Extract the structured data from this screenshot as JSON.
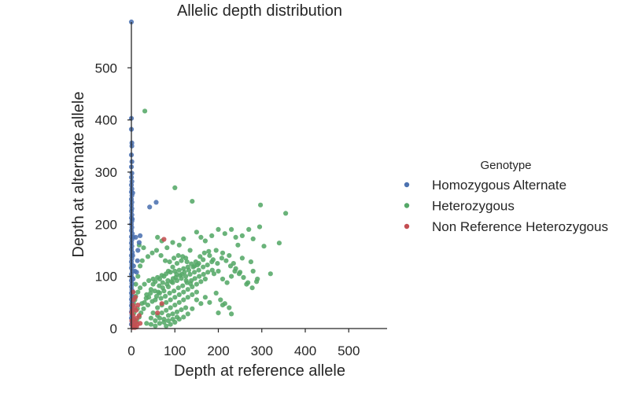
{
  "chart_data": {
    "type": "scatter",
    "title": "Allelic depth distribution",
    "xlabel": "Depth at reference allele",
    "ylabel": "Depth at alternate allele",
    "xlim": [
      0,
      590
    ],
    "ylim": [
      0,
      590
    ],
    "xticks": [
      0,
      100,
      200,
      300,
      400,
      500
    ],
    "yticks": [
      0,
      100,
      200,
      300,
      400,
      500
    ],
    "grid": false,
    "legend": {
      "title": "Genotype",
      "placement": "right"
    },
    "series": [
      {
        "name": "Homozygous Alternate",
        "color": "#4c72b0",
        "points": [
          [
            0,
            588
          ],
          [
            0,
            403
          ],
          [
            0,
            382
          ],
          [
            1,
            356
          ],
          [
            1,
            350
          ],
          [
            0,
            333
          ],
          [
            1,
            320
          ],
          [
            0,
            310
          ],
          [
            1,
            298
          ],
          [
            0,
            290
          ],
          [
            1,
            282
          ],
          [
            0,
            275
          ],
          [
            1,
            268
          ],
          [
            0,
            262
          ],
          [
            1,
            255
          ],
          [
            0,
            248
          ],
          [
            1,
            242
          ],
          [
            0,
            236
          ],
          [
            1,
            230
          ],
          [
            0,
            225
          ],
          [
            1,
            218
          ],
          [
            0,
            212
          ],
          [
            1,
            206
          ],
          [
            0,
            200
          ],
          [
            1,
            194
          ],
          [
            0,
            188
          ],
          [
            2,
            182
          ],
          [
            0,
            176
          ],
          [
            1,
            170
          ],
          [
            0,
            164
          ],
          [
            1,
            158
          ],
          [
            0,
            152
          ],
          [
            2,
            146
          ],
          [
            0,
            140
          ],
          [
            1,
            134
          ],
          [
            0,
            128
          ],
          [
            1,
            122
          ],
          [
            0,
            116
          ],
          [
            2,
            110
          ],
          [
            0,
            104
          ],
          [
            1,
            98
          ],
          [
            0,
            92
          ],
          [
            1,
            86
          ],
          [
            0,
            80
          ],
          [
            1,
            74
          ],
          [
            0,
            68
          ],
          [
            1,
            62
          ],
          [
            0,
            56
          ],
          [
            1,
            50
          ],
          [
            0,
            44
          ],
          [
            1,
            38
          ],
          [
            0,
            32
          ],
          [
            1,
            26
          ],
          [
            0,
            20
          ],
          [
            1,
            14
          ],
          [
            0,
            8
          ],
          [
            3,
            260
          ],
          [
            2,
            210
          ],
          [
            4,
            175
          ],
          [
            3,
            140
          ],
          [
            5,
            120
          ],
          [
            4,
            95
          ],
          [
            3,
            70
          ],
          [
            2,
            45
          ],
          [
            10,
            175
          ],
          [
            8,
            110
          ],
          [
            12,
            108
          ],
          [
            20,
            178
          ],
          [
            18,
            165
          ],
          [
            15,
            150
          ],
          [
            14,
            130
          ],
          [
            42,
            233
          ],
          [
            57,
            242
          ]
        ]
      },
      {
        "name": "Heterozygous",
        "color": "#55a868",
        "points": [
          [
            31,
            417
          ],
          [
            100,
            270
          ],
          [
            140,
            244
          ],
          [
            297,
            237
          ],
          [
            355,
            221
          ],
          [
            60,
            175
          ],
          [
            70,
            168
          ],
          [
            82,
            155
          ],
          [
            95,
            165
          ],
          [
            110,
            160
          ],
          [
            120,
            172
          ],
          [
            135,
            150
          ],
          [
            150,
            185
          ],
          [
            160,
            175
          ],
          [
            170,
            168
          ],
          [
            185,
            178
          ],
          [
            200,
            190
          ],
          [
            215,
            182
          ],
          [
            230,
            190
          ],
          [
            240,
            175
          ],
          [
            255,
            178
          ],
          [
            270,
            190
          ],
          [
            280,
            172
          ],
          [
            295,
            195
          ],
          [
            305,
            158
          ],
          [
            340,
            164
          ],
          [
            245,
            160
          ],
          [
            225,
            140
          ],
          [
            210,
            145
          ],
          [
            195,
            150
          ],
          [
            180,
            140
          ],
          [
            165,
            132
          ],
          [
            155,
            125
          ],
          [
            145,
            120
          ],
          [
            130,
            118
          ],
          [
            120,
            115
          ],
          [
            110,
            112
          ],
          [
            100,
            110
          ],
          [
            90,
            108
          ],
          [
            80,
            105
          ],
          [
            70,
            102
          ],
          [
            60,
            98
          ],
          [
            50,
            95
          ],
          [
            40,
            92
          ],
          [
            30,
            85
          ],
          [
            20,
            78
          ],
          [
            15,
            70
          ],
          [
            10,
            62
          ],
          [
            8,
            55
          ],
          [
            5,
            48
          ],
          [
            40,
            60
          ],
          [
            55,
            55
          ],
          [
            65,
            68
          ],
          [
            75,
            72
          ],
          [
            85,
            80
          ],
          [
            95,
            88
          ],
          [
            105,
            92
          ],
          [
            115,
            96
          ],
          [
            125,
            100
          ],
          [
            135,
            104
          ],
          [
            145,
            108
          ],
          [
            155,
            112
          ],
          [
            165,
            118
          ],
          [
            175,
            122
          ],
          [
            185,
            128
          ],
          [
            60,
            40
          ],
          [
            70,
            45
          ],
          [
            80,
            50
          ],
          [
            90,
            55
          ],
          [
            100,
            60
          ],
          [
            110,
            65
          ],
          [
            120,
            70
          ],
          [
            130,
            75
          ],
          [
            140,
            80
          ],
          [
            150,
            85
          ],
          [
            160,
            90
          ],
          [
            170,
            95
          ],
          [
            50,
            30
          ],
          [
            60,
            25
          ],
          [
            70,
            30
          ],
          [
            80,
            35
          ],
          [
            90,
            40
          ],
          [
            100,
            45
          ],
          [
            110,
            50
          ],
          [
            120,
            55
          ],
          [
            130,
            60
          ],
          [
            140,
            65
          ],
          [
            150,
            70
          ],
          [
            45,
            20
          ],
          [
            55,
            15
          ],
          [
            65,
            20
          ],
          [
            75,
            18
          ],
          [
            85,
            25
          ],
          [
            95,
            28
          ],
          [
            105,
            32
          ],
          [
            115,
            36
          ],
          [
            125,
            40
          ],
          [
            35,
            10
          ],
          [
            45,
            8
          ],
          [
            55,
            5
          ],
          [
            65,
            10
          ],
          [
            75,
            12
          ],
          [
            85,
            15
          ],
          [
            95,
            18
          ],
          [
            105,
            22
          ],
          [
            30,
            50
          ],
          [
            35,
            65
          ],
          [
            45,
            75
          ],
          [
            50,
            85
          ],
          [
            55,
            90
          ],
          [
            65,
            95
          ],
          [
            75,
            100
          ],
          [
            85,
            110
          ],
          [
            95,
            118
          ],
          [
            105,
            125
          ],
          [
            115,
            130
          ],
          [
            125,
            135
          ],
          [
            62,
            70
          ],
          [
            72,
            78
          ],
          [
            82,
            85
          ],
          [
            92,
            90
          ],
          [
            102,
            98
          ],
          [
            112,
            102
          ],
          [
            122,
            108
          ],
          [
            132,
            112
          ],
          [
            142,
            118
          ],
          [
            152,
            122
          ],
          [
            68,
            58
          ],
          [
            78,
            62
          ],
          [
            88,
            68
          ],
          [
            98,
            72
          ],
          [
            108,
            78
          ],
          [
            118,
            82
          ],
          [
            128,
            88
          ],
          [
            138,
            92
          ],
          [
            58,
            62
          ],
          [
            48,
            52
          ],
          [
            38,
            45
          ],
          [
            28,
            38
          ],
          [
            22,
            30
          ],
          [
            18,
            22
          ],
          [
            12,
            15
          ],
          [
            8,
            10
          ],
          [
            190,
            105
          ],
          [
            200,
            110
          ],
          [
            210,
            95
          ],
          [
            220,
            88
          ],
          [
            230,
            100
          ],
          [
            240,
            115
          ],
          [
            250,
            108
          ],
          [
            265,
            85
          ],
          [
            280,
            110
          ],
          [
            290,
            95
          ],
          [
            320,
            105
          ],
          [
            275,
            128
          ],
          [
            235,
            125
          ],
          [
            255,
            135
          ],
          [
            195,
            68
          ],
          [
            205,
            55
          ],
          [
            215,
            48
          ],
          [
            225,
            40
          ],
          [
            180,
            50
          ],
          [
            170,
            60
          ],
          [
            200,
            30
          ],
          [
            210,
            45
          ],
          [
            230,
            28
          ],
          [
            160,
            48
          ],
          [
            150,
            55
          ],
          [
            140,
            38
          ],
          [
            130,
            28
          ],
          [
            120,
            22
          ],
          [
            110,
            18
          ],
          [
            100,
            12
          ],
          [
            90,
            8
          ],
          [
            80,
            5
          ],
          [
            25,
            130
          ],
          [
            20,
            120
          ],
          [
            15,
            100
          ],
          [
            10,
            85
          ],
          [
            18,
            160
          ],
          [
            28,
            155
          ],
          [
            38,
            138
          ],
          [
            48,
            145
          ],
          [
            58,
            150
          ],
          [
            68,
            140
          ],
          [
            78,
            130
          ],
          [
            88,
            128
          ],
          [
            98,
            135
          ],
          [
            108,
            140
          ],
          [
            118,
            138
          ],
          [
            128,
            128
          ],
          [
            138,
            124
          ],
          [
            148,
            128
          ],
          [
            158,
            138
          ],
          [
            168,
            145
          ],
          [
            178,
            148
          ],
          [
            188,
            132
          ],
          [
            198,
            125
          ],
          [
            208,
            135
          ],
          [
            218,
            130
          ],
          [
            228,
            120
          ],
          [
            238,
            110
          ],
          [
            248,
            105
          ],
          [
            258,
            98
          ],
          [
            268,
            88
          ],
          [
            278,
            78
          ],
          [
            288,
            90
          ],
          [
            72,
            88
          ],
          [
            84,
            92
          ],
          [
            96,
            96
          ],
          [
            104,
            104
          ],
          [
            116,
            104
          ],
          [
            126,
            92
          ],
          [
            136,
            86
          ],
          [
            146,
            96
          ],
          [
            156,
            100
          ],
          [
            166,
            104
          ],
          [
            176,
            108
          ],
          [
            186,
            112
          ],
          [
            64,
            82
          ],
          [
            54,
            72
          ],
          [
            44,
            68
          ],
          [
            34,
            58
          ],
          [
            24,
            48
          ],
          [
            14,
            38
          ],
          [
            6,
            30
          ],
          [
            3,
            18
          ],
          [
            2,
            40
          ],
          [
            4,
            60
          ]
        ]
      },
      {
        "name": "Non Reference Heterozygous",
        "color": "#c44e52",
        "points": [
          [
            75,
            171
          ],
          [
            70,
            48
          ],
          [
            60,
            30
          ],
          [
            5,
            55
          ],
          [
            3,
            45
          ],
          [
            2,
            35
          ],
          [
            4,
            25
          ],
          [
            1,
            15
          ],
          [
            2,
            8
          ],
          [
            6,
            5
          ],
          [
            10,
            12
          ],
          [
            12,
            3
          ],
          [
            8,
            2
          ],
          [
            14,
            8
          ],
          [
            3,
            2
          ],
          [
            1,
            30
          ],
          [
            9,
            60
          ],
          [
            15,
            45
          ],
          [
            18,
            25
          ],
          [
            20,
            10
          ],
          [
            4,
            70
          ],
          [
            6,
            18
          ],
          [
            11,
            35
          ],
          [
            7,
            40
          ],
          [
            13,
            20
          ]
        ]
      }
    ]
  }
}
